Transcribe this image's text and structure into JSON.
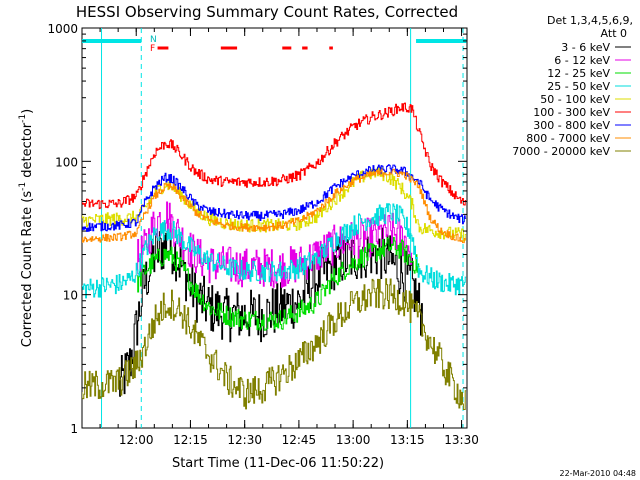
{
  "chart_data": {
    "type": "line",
    "title": "HESSI Observing Summary Count Rates, Corrected",
    "xlabel": "Start Time (11-Dec-06 11:50:22)",
    "ylabel_main": "Corrected Count Rate (s",
    "ylabel_sup1": "-1",
    "ylabel_mid": " detector",
    "ylabel_sup2": "-1",
    "ylabel_end": ")",
    "timestamp": "22-Mar-2010 04:48",
    "yscale": "log",
    "ylim": [
      1,
      1000
    ],
    "xlim_minutes": [
      -5.4,
      101.1
    ],
    "x_tick_labels": [
      "12:00",
      "12:15",
      "12:30",
      "12:45",
      "13:00",
      "13:15",
      "13:30"
    ],
    "x_tick_minutes": [
      9.6,
      24.6,
      39.6,
      54.6,
      69.6,
      84.6,
      99.6
    ],
    "y_tick_labels": [
      "1",
      "10",
      "100",
      "1000"
    ],
    "y_tick_values": [
      1,
      10,
      100,
      1000
    ],
    "legend_header": [
      "Det 1,3,4,5,6,9,",
      "Att 0"
    ],
    "legend_placement": "right",
    "night_label": "N",
    "flare_label": "F",
    "night_color": "#00e5e5",
    "flare_color": "#ff0000",
    "night_bars": [
      [
        -5.4,
        11.0
      ],
      [
        87.0,
        100.9
      ]
    ],
    "flare_bars": [
      [
        15.5,
        18.5
      ],
      [
        33.0,
        37.5
      ],
      [
        50.0,
        52.5
      ],
      [
        55.5,
        57.0
      ],
      [
        63.0,
        64.0
      ]
    ],
    "saa_or_night_lines": [
      [
        0.0,
        "solid"
      ],
      [
        11.0,
        "dashed"
      ],
      [
        85.5,
        "solid"
      ],
      [
        100.0,
        "dashed"
      ]
    ],
    "series": [
      {
        "name": "3 - 6 keV",
        "color": "#000000",
        "noise": 0.2,
        "points": [
          [
            5,
            2
          ],
          [
            8,
            3
          ],
          [
            10,
            6
          ],
          [
            12,
            12
          ],
          [
            15,
            20
          ],
          [
            18,
            24
          ],
          [
            20,
            22
          ],
          [
            23,
            15
          ],
          [
            26,
            10
          ],
          [
            30,
            8
          ],
          [
            35,
            7
          ],
          [
            40,
            7
          ],
          [
            45,
            7
          ],
          [
            50,
            8
          ],
          [
            55,
            9
          ],
          [
            58,
            12
          ],
          [
            62,
            15
          ],
          [
            66,
            18
          ],
          [
            70,
            19
          ],
          [
            74,
            21
          ],
          [
            78,
            20
          ],
          [
            82,
            16
          ],
          [
            86,
            12
          ],
          [
            89,
            7
          ]
        ]
      },
      {
        "name": "6 - 12 keV",
        "color": "#e600e6",
        "noise": 0.15,
        "points": [
          [
            10,
            18
          ],
          [
            12,
            22
          ],
          [
            15,
            35
          ],
          [
            18,
            40
          ],
          [
            20,
            33
          ],
          [
            23,
            25
          ],
          [
            26,
            20
          ],
          [
            30,
            17
          ],
          [
            40,
            16
          ],
          [
            50,
            16
          ],
          [
            55,
            17
          ],
          [
            60,
            20
          ],
          [
            65,
            24
          ],
          [
            70,
            26
          ],
          [
            75,
            27
          ],
          [
            80,
            30
          ],
          [
            84,
            26
          ],
          [
            86,
            20
          ]
        ]
      },
      {
        "name": "12 - 25 keV",
        "color": "#00dd00",
        "noise": 0.08,
        "points": [
          [
            10,
            12
          ],
          [
            12,
            15
          ],
          [
            15,
            18
          ],
          [
            18,
            20
          ],
          [
            20,
            19
          ],
          [
            23,
            15
          ],
          [
            26,
            11
          ],
          [
            30,
            8
          ],
          [
            35,
            7
          ],
          [
            40,
            6.5
          ],
          [
            45,
            6.5
          ],
          [
            50,
            6.5
          ],
          [
            55,
            7.5
          ],
          [
            60,
            9
          ],
          [
            64,
            13
          ],
          [
            68,
            16
          ],
          [
            72,
            19
          ],
          [
            76,
            21
          ],
          [
            80,
            23
          ],
          [
            83,
            22
          ],
          [
            86,
            18
          ],
          [
            88,
            16
          ]
        ]
      },
      {
        "name": "25 - 50 keV",
        "color": "#00dddd",
        "noise": 0.08,
        "points": [
          [
            -5.4,
            11
          ],
          [
            0,
            11.5
          ],
          [
            5,
            12
          ],
          [
            8,
            13
          ],
          [
            10,
            15
          ],
          [
            12,
            21
          ],
          [
            15,
            29
          ],
          [
            18,
            31
          ],
          [
            20,
            30
          ],
          [
            23,
            25
          ],
          [
            26,
            21
          ],
          [
            30,
            18
          ],
          [
            35,
            16
          ],
          [
            40,
            15
          ],
          [
            45,
            15
          ],
          [
            50,
            15
          ],
          [
            55,
            16
          ],
          [
            60,
            19
          ],
          [
            65,
            26
          ],
          [
            70,
            33
          ],
          [
            75,
            38
          ],
          [
            78,
            40
          ],
          [
            80,
            42
          ],
          [
            83,
            38
          ],
          [
            86,
            28
          ],
          [
            88,
            15
          ],
          [
            92,
            13
          ],
          [
            96,
            12
          ],
          [
            100.9,
            12
          ]
        ]
      },
      {
        "name": "50 - 100 keV",
        "color": "#dddd00",
        "noise": 0.05,
        "points": [
          [
            -5.4,
            36
          ],
          [
            5,
            37
          ],
          [
            10,
            38
          ],
          [
            12,
            44
          ],
          [
            15,
            58
          ],
          [
            18,
            68
          ],
          [
            20,
            64
          ],
          [
            23,
            53
          ],
          [
            26,
            43
          ],
          [
            30,
            37
          ],
          [
            35,
            34
          ],
          [
            40,
            33
          ],
          [
            45,
            33
          ],
          [
            50,
            33
          ],
          [
            55,
            34
          ],
          [
            60,
            39
          ],
          [
            65,
            53
          ],
          [
            70,
            70
          ],
          [
            73,
            78
          ],
          [
            76,
            83
          ],
          [
            78,
            80
          ],
          [
            80,
            75
          ],
          [
            83,
            64
          ],
          [
            86,
            48
          ],
          [
            88,
            32
          ],
          [
            92,
            30
          ],
          [
            96,
            29
          ],
          [
            100.9,
            28
          ]
        ]
      },
      {
        "name": "100 - 300 keV",
        "color": "#ff0000",
        "noise": 0.04,
        "points": [
          [
            -5.4,
            48
          ],
          [
            5,
            48
          ],
          [
            10,
            55
          ],
          [
            12,
            78
          ],
          [
            15,
            118
          ],
          [
            18,
            138
          ],
          [
            20,
            130
          ],
          [
            23,
            105
          ],
          [
            26,
            84
          ],
          [
            30,
            73
          ],
          [
            35,
            70
          ],
          [
            40,
            70
          ],
          [
            45,
            70
          ],
          [
            50,
            72
          ],
          [
            55,
            79
          ],
          [
            60,
            98
          ],
          [
            65,
            140
          ],
          [
            70,
            183
          ],
          [
            75,
            215
          ],
          [
            80,
            235
          ],
          [
            83,
            255
          ],
          [
            86,
            250
          ],
          [
            88,
            165
          ],
          [
            91,
            95
          ],
          [
            94,
            72
          ],
          [
            98,
            55
          ],
          [
            100.9,
            47
          ]
        ]
      },
      {
        "name": "300 - 800 keV",
        "color": "#0000ff",
        "noise": 0.035,
        "points": [
          [
            -5.4,
            32
          ],
          [
            5,
            33
          ],
          [
            10,
            35
          ],
          [
            12,
            48
          ],
          [
            15,
            65
          ],
          [
            18,
            76
          ],
          [
            20,
            73
          ],
          [
            23,
            60
          ],
          [
            26,
            48
          ],
          [
            30,
            42
          ],
          [
            35,
            40
          ],
          [
            40,
            39
          ],
          [
            45,
            39
          ],
          [
            50,
            40
          ],
          [
            55,
            43
          ],
          [
            60,
            50
          ],
          [
            65,
            65
          ],
          [
            70,
            78
          ],
          [
            75,
            86
          ],
          [
            80,
            88
          ],
          [
            84,
            84
          ],
          [
            88,
            70
          ],
          [
            91,
            52
          ],
          [
            94,
            44
          ],
          [
            98,
            38
          ],
          [
            100.9,
            36
          ]
        ]
      },
      {
        "name": "800 - 7000 keV",
        "color": "#ff8c00",
        "noise": 0.03,
        "points": [
          [
            -5.4,
            26
          ],
          [
            5,
            27
          ],
          [
            10,
            29
          ],
          [
            12,
            40
          ],
          [
            15,
            55
          ],
          [
            18,
            65
          ],
          [
            20,
            63
          ],
          [
            23,
            52
          ],
          [
            26,
            42
          ],
          [
            30,
            36
          ],
          [
            35,
            33
          ],
          [
            40,
            32
          ],
          [
            45,
            32
          ],
          [
            50,
            33
          ],
          [
            55,
            36
          ],
          [
            60,
            43
          ],
          [
            65,
            58
          ],
          [
            70,
            72
          ],
          [
            75,
            80
          ],
          [
            80,
            83
          ],
          [
            84,
            80
          ],
          [
            88,
            65
          ],
          [
            91,
            38
          ],
          [
            94,
            30
          ],
          [
            98,
            27
          ],
          [
            100.9,
            25
          ]
        ]
      },
      {
        "name": "7000 - 20000 keV",
        "color": "#808000",
        "noise": 0.12,
        "points": [
          [
            -5.4,
            2
          ],
          [
            5,
            2.2
          ],
          [
            10,
            3
          ],
          [
            12,
            4
          ],
          [
            15,
            6.5
          ],
          [
            18,
            8.5
          ],
          [
            20,
            8.5
          ],
          [
            23,
            7
          ],
          [
            26,
            5
          ],
          [
            30,
            3.5
          ],
          [
            35,
            2.3
          ],
          [
            40,
            1.8
          ],
          [
            45,
            2
          ],
          [
            50,
            2.5
          ],
          [
            55,
            3.2
          ],
          [
            60,
            4.5
          ],
          [
            65,
            6.5
          ],
          [
            70,
            8.5
          ],
          [
            75,
            10
          ],
          [
            80,
            10
          ],
          [
            84,
            9
          ],
          [
            88,
            6.5
          ],
          [
            92,
            4
          ],
          [
            96,
            2.5
          ],
          [
            100.9,
            1.5
          ]
        ]
      }
    ]
  }
}
